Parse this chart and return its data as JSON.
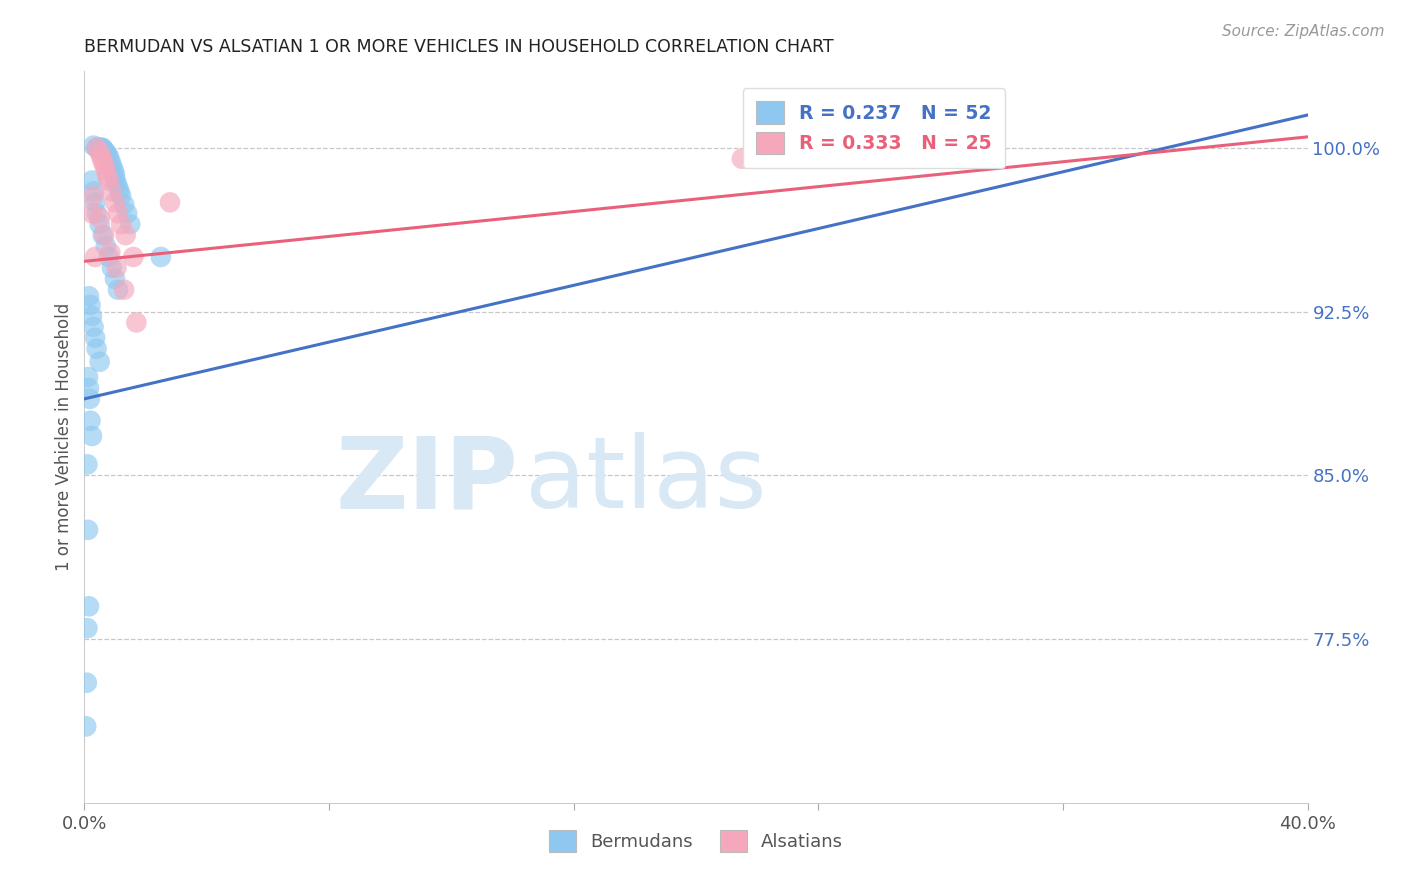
{
  "title": "BERMUDAN VS ALSATIAN 1 OR MORE VEHICLES IN HOUSEHOLD CORRELATION CHART",
  "source": "Source: ZipAtlas.com",
  "ylabel": "1 or more Vehicles in Household",
  "yticks": [
    77.5,
    85.0,
    92.5,
    100.0
  ],
  "ytick_labels": [
    "77.5%",
    "85.0%",
    "92.5%",
    "100.0%"
  ],
  "xtick_vals": [
    0,
    8,
    16,
    24,
    32,
    40
  ],
  "xtick_labels": [
    "0.0%",
    "",
    "",
    "",
    "",
    "40.0%"
  ],
  "xmin": 0.0,
  "xmax": 40.0,
  "ymin": 70.0,
  "ymax": 103.5,
  "bermudan_R": 0.237,
  "bermudan_N": 52,
  "alsatian_R": 0.333,
  "alsatian_N": 25,
  "bermudan_color": "#8EC8F0",
  "alsatian_color": "#F5A8BC",
  "bermudan_line_color": "#4472C4",
  "alsatian_line_color": "#E8607A",
  "right_tick_color": "#4472C4",
  "grid_color": "#c8c8c8",
  "title_color": "#222222",
  "axis_label_color": "#555555",
  "watermark_color": "#D8E8F5",
  "blue_line_x0": 0.0,
  "blue_line_y0": 88.5,
  "blue_line_x1": 40.0,
  "blue_line_y1": 101.5,
  "pink_line_x0": 0.0,
  "pink_line_y0": 94.8,
  "pink_line_x1": 40.0,
  "pink_line_y1": 100.5,
  "bermudan_x": [
    0.3,
    0.4,
    0.5,
    0.5,
    0.55,
    0.6,
    0.65,
    0.7,
    0.75,
    0.8,
    0.85,
    0.9,
    0.95,
    1.0,
    1.0,
    1.05,
    1.1,
    1.15,
    1.2,
    1.3,
    1.4,
    1.5,
    0.25,
    0.3,
    0.35,
    0.4,
    0.5,
    0.6,
    0.7,
    0.8,
    0.9,
    1.0,
    1.1,
    0.15,
    0.2,
    0.25,
    0.3,
    0.35,
    0.4,
    0.5,
    0.12,
    0.15,
    0.18,
    0.2,
    0.25,
    0.1,
    0.12,
    0.15,
    0.1,
    2.5,
    0.08,
    0.06
  ],
  "bermudan_y": [
    100.1,
    100.0,
    100.0,
    100.0,
    100.0,
    100.0,
    99.9,
    99.8,
    99.7,
    99.6,
    99.4,
    99.2,
    99.0,
    98.8,
    98.6,
    98.4,
    98.2,
    98.0,
    97.8,
    97.4,
    97.0,
    96.5,
    98.5,
    98.0,
    97.5,
    97.0,
    96.5,
    96.0,
    95.5,
    95.0,
    94.5,
    94.0,
    93.5,
    93.2,
    92.8,
    92.3,
    91.8,
    91.3,
    90.8,
    90.2,
    89.5,
    89.0,
    88.5,
    87.5,
    86.8,
    85.5,
    82.5,
    79.0,
    78.0,
    95.0,
    75.5,
    73.5
  ],
  "alsatian_x": [
    0.4,
    0.5,
    0.55,
    0.6,
    0.65,
    0.7,
    0.75,
    0.8,
    0.9,
    1.0,
    1.1,
    1.2,
    1.35,
    1.6,
    0.3,
    0.5,
    0.65,
    0.85,
    1.05,
    1.3,
    1.7,
    0.25,
    0.35,
    2.8,
    21.5
  ],
  "alsatian_y": [
    100.0,
    99.8,
    99.6,
    99.4,
    99.2,
    99.0,
    98.7,
    98.5,
    98.0,
    97.5,
    97.0,
    96.5,
    96.0,
    95.0,
    97.8,
    96.8,
    96.0,
    95.2,
    94.5,
    93.5,
    92.0,
    97.0,
    95.0,
    97.5,
    99.5
  ]
}
